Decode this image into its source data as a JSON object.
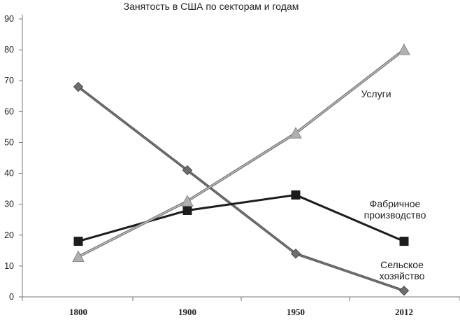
{
  "chart_data": {
    "type": "line",
    "title": "Занятость в США по секторам и годам",
    "xlabel": "",
    "ylabel": "",
    "categories": [
      "1800",
      "1900",
      "1950",
      "2012"
    ],
    "ylim": [
      0,
      90
    ],
    "yticks": [
      0,
      10,
      20,
      30,
      40,
      50,
      60,
      70,
      80,
      90
    ],
    "grid": false,
    "legend": "inline labels",
    "series": [
      {
        "key": "agriculture",
        "label_lines": [
          "Сельское",
          "хозяйство"
        ],
        "values": [
          68,
          41,
          14,
          2
        ],
        "marker": "diamond",
        "color": "#6e6e6e"
      },
      {
        "key": "manufacturing",
        "label_lines": [
          "Фабричное",
          "производство"
        ],
        "values": [
          18,
          28,
          33,
          18
        ],
        "marker": "square",
        "color": "#1c1c1c"
      },
      {
        "key": "services",
        "label_lines": [
          "Услуги"
        ],
        "values": [
          13,
          31,
          53,
          80
        ],
        "marker": "triangle",
        "color": "#b0b0b0"
      }
    ]
  }
}
